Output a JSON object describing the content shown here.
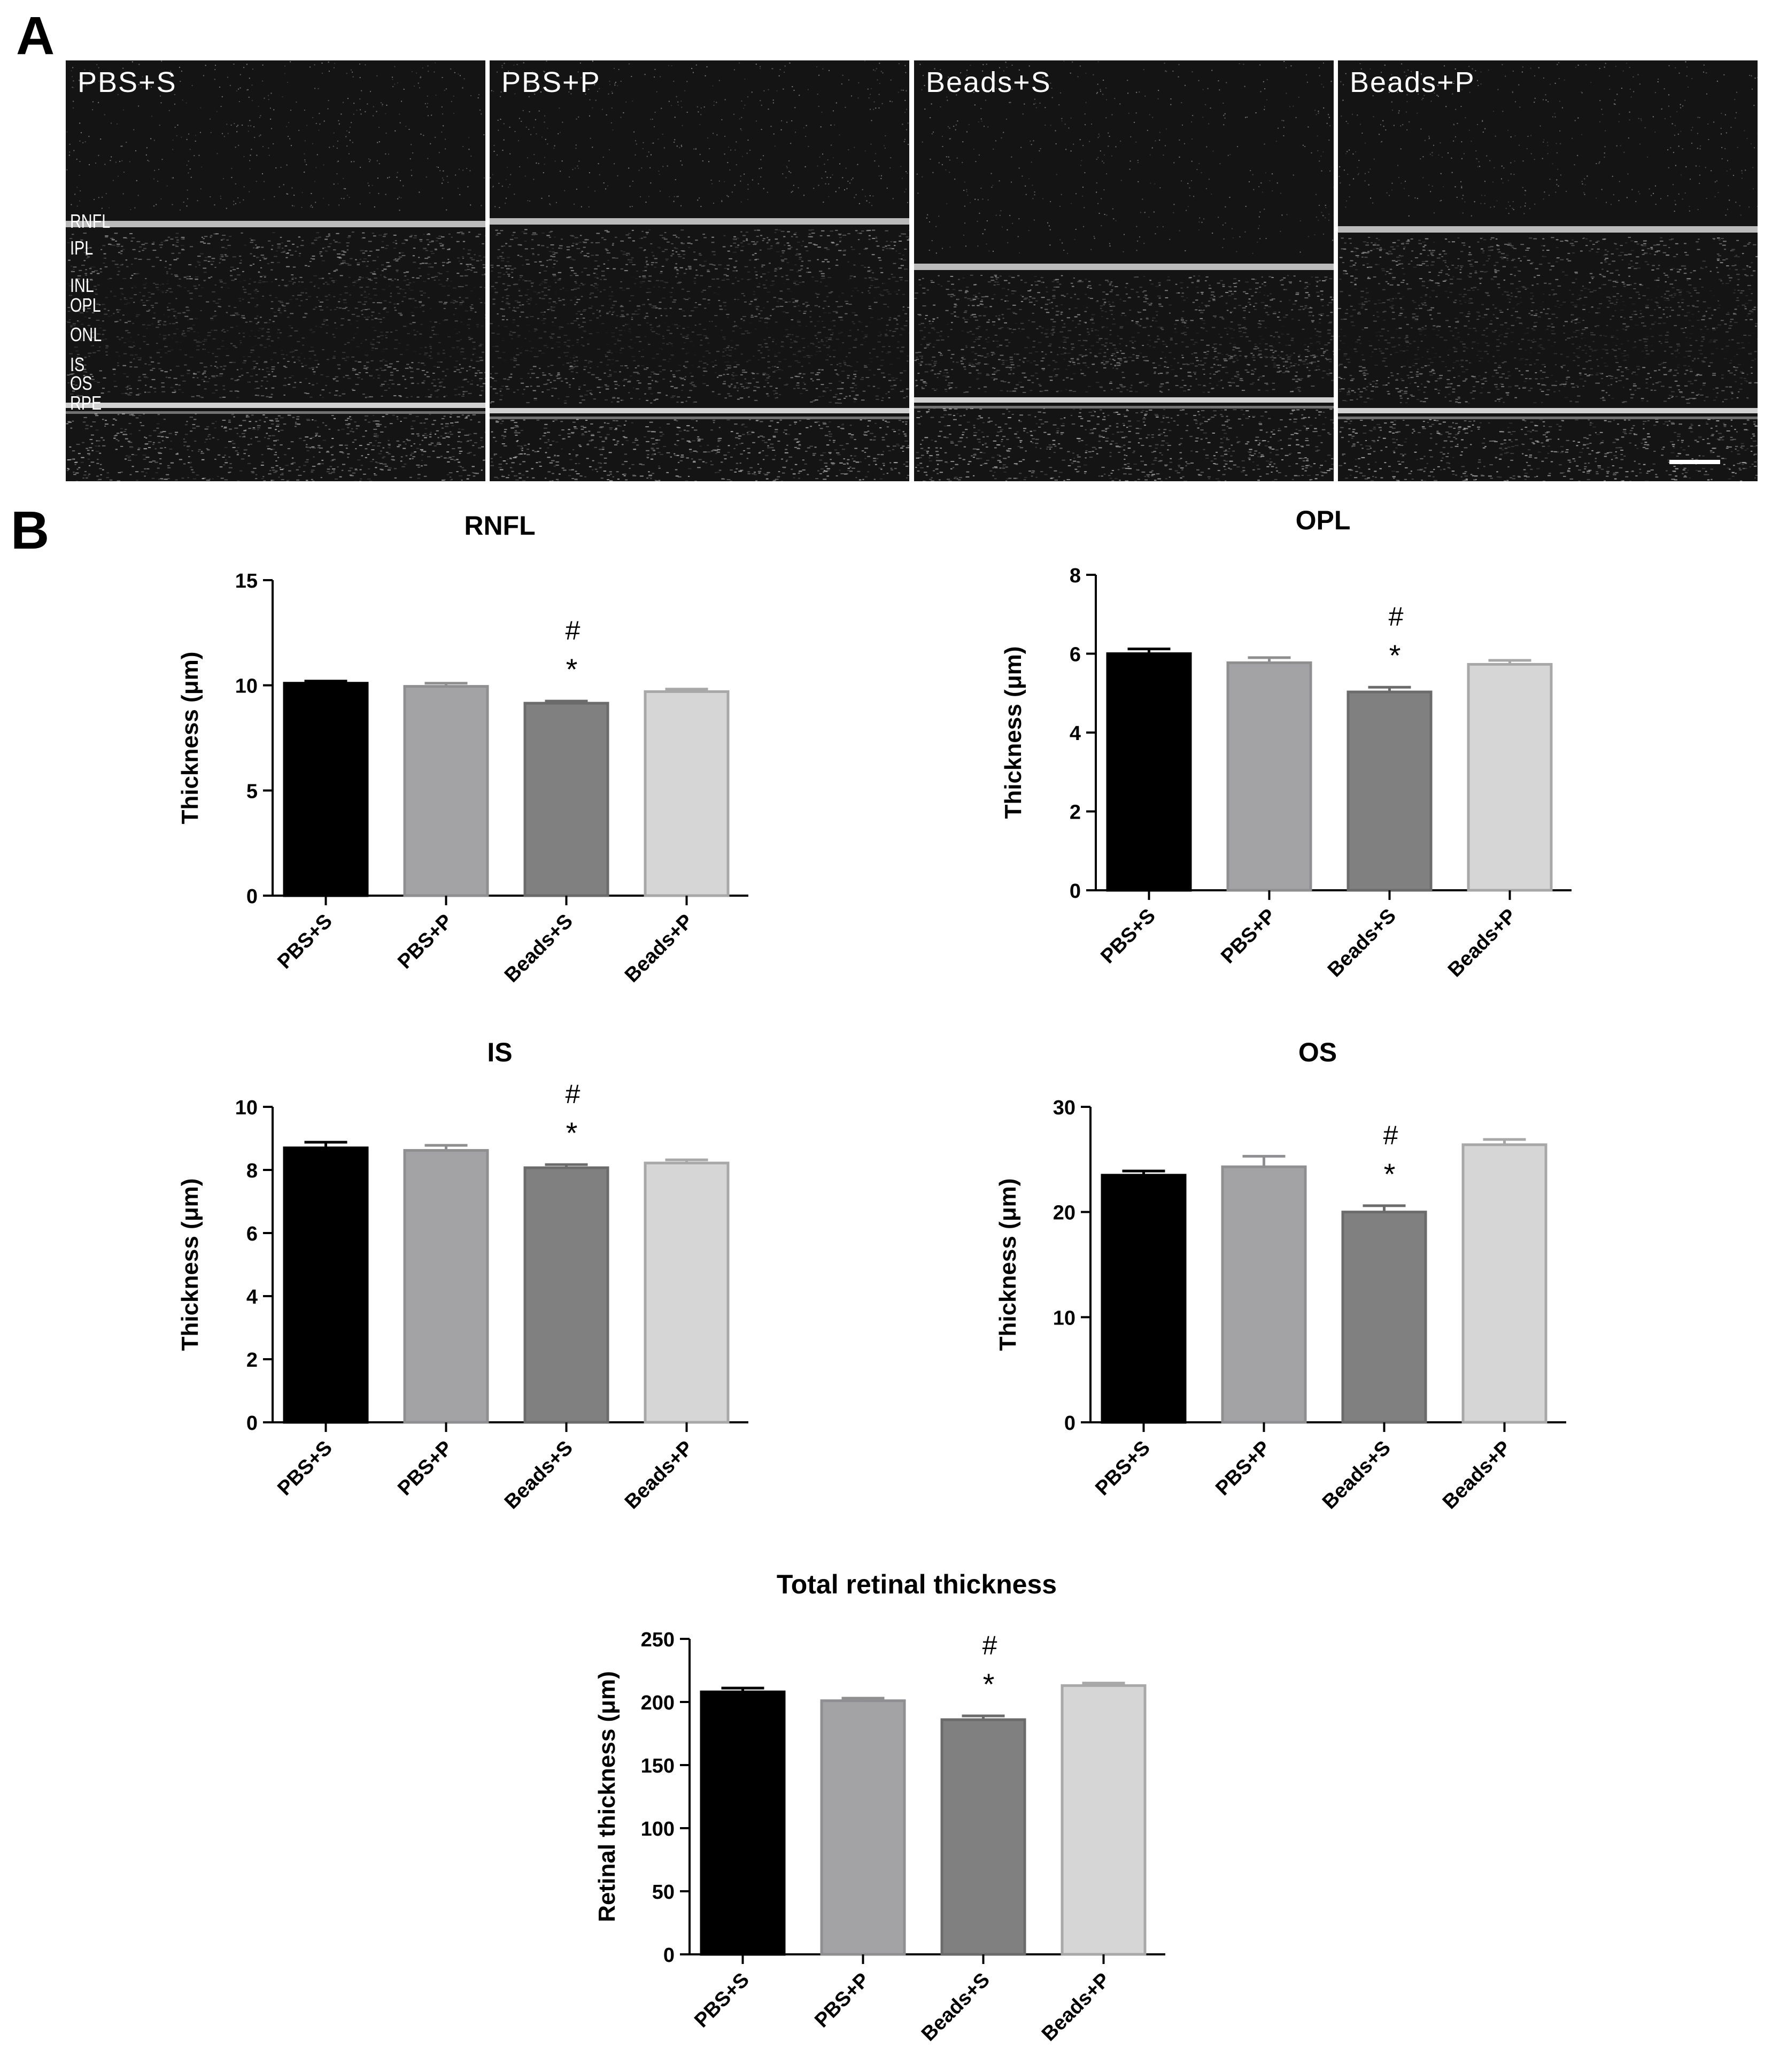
{
  "panels": {
    "a": "A",
    "b": "B"
  },
  "oct_images": [
    {
      "label": "PBS+S"
    },
    {
      "label": "PBS+P"
    },
    {
      "label": "Beads+S"
    },
    {
      "label": "Beads+P"
    }
  ],
  "layer_labels": [
    "RNFL",
    "IPL",
    "INL",
    "OPL",
    "ONL",
    "IS",
    "OS",
    "RPE"
  ],
  "colors": {
    "pbs_s": "#000000",
    "pbs_p": "#a3a3a6",
    "beads_s": "#808080",
    "beads_p": "#d6d6d6"
  },
  "chart_data": [
    {
      "type": "bar",
      "title": "RNFL",
      "ylabel": "Thickness (μm)",
      "categories": [
        "PBS+S",
        "PBS+P",
        "Beads+S",
        "Beads+P"
      ],
      "values": [
        10.1,
        9.95,
        9.15,
        9.7
      ],
      "errors": [
        0.1,
        0.15,
        0.1,
        0.12
      ],
      "ylim": [
        0,
        15
      ],
      "yticks": [
        "0",
        "5",
        "10",
        "15"
      ],
      "annotations": [
        {
          "category": "Beads+S",
          "marks": [
            "#",
            "*"
          ]
        }
      ]
    },
    {
      "type": "bar",
      "title": "OPL",
      "ylabel": "Thickness (μm)",
      "categories": [
        "PBS+S",
        "PBS+P",
        "Beads+S",
        "Beads+P"
      ],
      "values": [
        6.0,
        5.77,
        5.03,
        5.73
      ],
      "errors": [
        0.12,
        0.13,
        0.12,
        0.1
      ],
      "ylim": [
        0,
        8
      ],
      "yticks": [
        "0",
        "2",
        "4",
        "6",
        "8"
      ],
      "annotations": [
        {
          "category": "Beads+S",
          "marks": [
            "#",
            "*"
          ]
        }
      ]
    },
    {
      "type": "bar",
      "title": "IS",
      "ylabel": "Thickness (μm)",
      "categories": [
        "PBS+S",
        "PBS+P",
        "Beads+S",
        "Beads+P"
      ],
      "values": [
        8.7,
        8.62,
        8.07,
        8.22
      ],
      "errors": [
        0.18,
        0.16,
        0.1,
        0.1
      ],
      "ylim": [
        0,
        10
      ],
      "yticks": [
        "0",
        "2",
        "4",
        "6",
        "8",
        "10"
      ],
      "annotations": [
        {
          "category": "Beads+S",
          "marks": [
            "#",
            "*"
          ]
        }
      ]
    },
    {
      "type": "bar",
      "title": "OS",
      "ylabel": "Thickness (μm)",
      "categories": [
        "PBS+S",
        "PBS+P",
        "Beads+S",
        "Beads+P"
      ],
      "values": [
        23.5,
        24.3,
        20.0,
        26.4
      ],
      "errors": [
        0.4,
        1.0,
        0.6,
        0.5
      ],
      "ylim": [
        0,
        30
      ],
      "yticks": [
        "0",
        "10",
        "20",
        "30"
      ],
      "annotations": [
        {
          "category": "Beads+S",
          "marks": [
            "#",
            "*"
          ]
        }
      ]
    },
    {
      "type": "bar",
      "title": "Total retinal thickness",
      "ylabel": "Retinal thickness (μm)",
      "categories": [
        "PBS+S",
        "PBS+P",
        "Beads+S",
        "Beads+P"
      ],
      "values": [
        208,
        201,
        186,
        213
      ],
      "errors": [
        3,
        2,
        3,
        2
      ],
      "ylim": [
        0,
        250
      ],
      "yticks": [
        "0",
        "50",
        "100",
        "150",
        "200",
        "250"
      ],
      "annotations": [
        {
          "category": "Beads+S",
          "marks": [
            "#",
            "*"
          ]
        }
      ]
    }
  ]
}
